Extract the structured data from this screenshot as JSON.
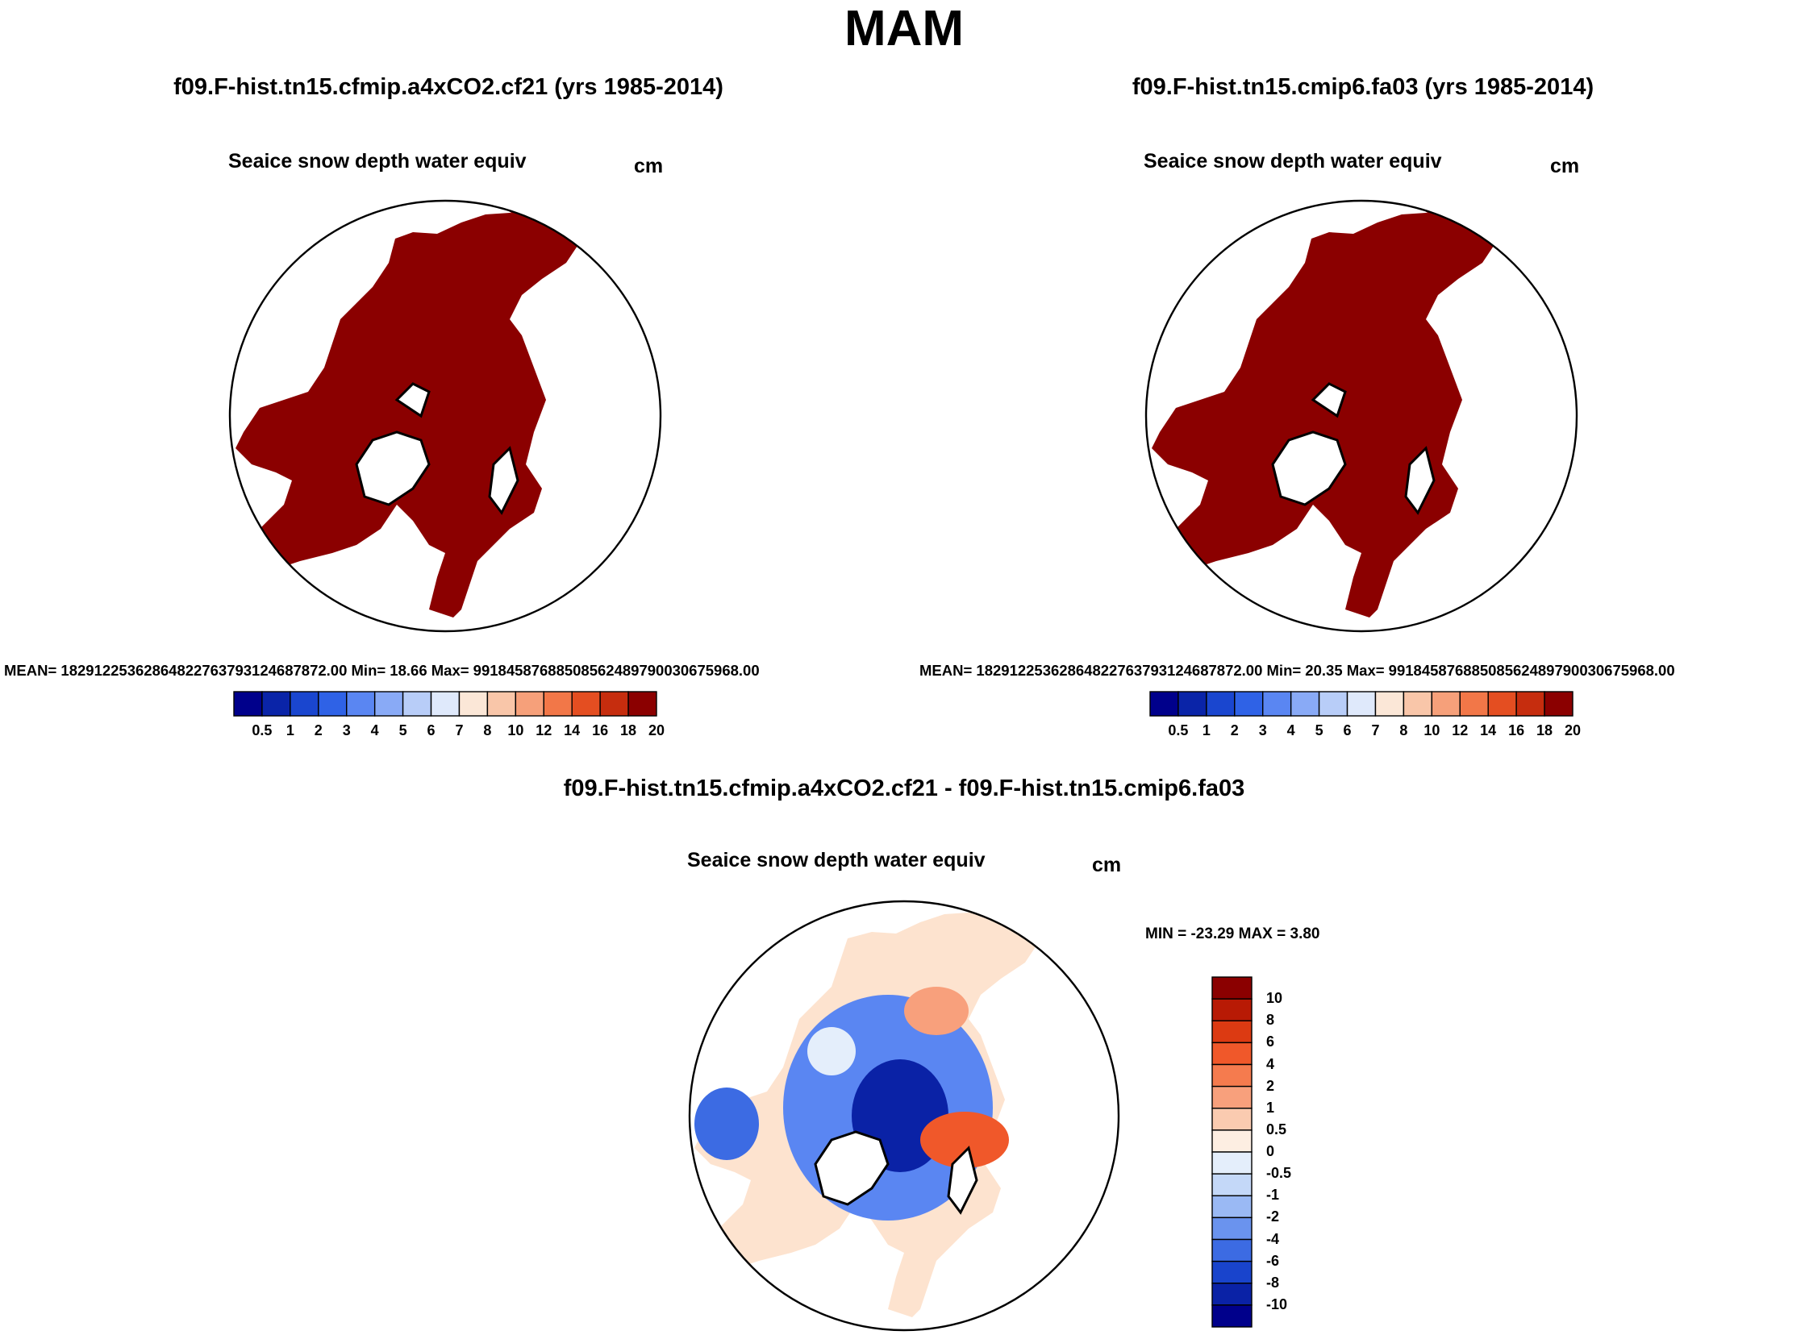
{
  "main_title": "MAM",
  "panels": [
    {
      "case_title": "f09.F-hist.tn15.cfmip.a4xCO2.cf21 (yrs 1985-2014)",
      "var_title": "Seaice snow depth water equiv",
      "units": "cm",
      "stats": "MEAN= 182912253628648227637931246878​72.00  Min=  18.66  Max= 99184587688508562489790030675968.00",
      "colorbar": {
        "labels": [
          "0.5",
          "1",
          "2",
          "3",
          "4",
          "5",
          "6",
          "7",
          "8",
          "10",
          "12",
          "14",
          "16",
          "18",
          "20"
        ],
        "colors": [
          "#00008b",
          "#0a24a8",
          "#1a46cf",
          "#2f62e6",
          "#5a86f2",
          "#89aaf6",
          "#b8cdf8",
          "#dfe9fb",
          "#fbe7d7",
          "#f9c6a9",
          "#f6a07a",
          "#f27748",
          "#e44e21",
          "#c62d0e",
          "#8b0000"
        ]
      },
      "field_color": "#8b0000"
    },
    {
      "case_title": "f09.F-hist.tn15.cmip6.fa03 (yrs 1985-2014)",
      "var_title": "Seaice snow depth water equiv",
      "units": "cm",
      "stats": "MEAN= 18291225362864822763793124687872.00  Min=  20.35  Max= 99184587688508562489790030675968.00",
      "colorbar": {
        "labels": [
          "0.5",
          "1",
          "2",
          "3",
          "4",
          "5",
          "6",
          "7",
          "8",
          "10",
          "12",
          "14",
          "16",
          "18",
          "20"
        ],
        "colors": [
          "#00008b",
          "#0a24a8",
          "#1a46cf",
          "#2f62e6",
          "#5a86f2",
          "#89aaf6",
          "#b8cdf8",
          "#dfe9fb",
          "#fbe7d7",
          "#f9c6a9",
          "#f6a07a",
          "#f27748",
          "#e44e21",
          "#c62d0e",
          "#8b0000"
        ]
      },
      "field_color": "#8b0000"
    }
  ],
  "diff_panel": {
    "case_title": "f09.F-hist.tn15.cfmip.a4xCO2.cf21 - f09.F-hist.tn15.cmip6.fa03",
    "var_title": "Seaice snow depth water equiv",
    "units": "cm",
    "minmax": "MIN = -23.29 MAX =   3.80",
    "colorbar": {
      "labels": [
        "10",
        "8",
        "6",
        "4",
        "2",
        "1",
        "0.5",
        "0",
        "-0.5",
        "-1",
        "-2",
        "-4",
        "-6",
        "-8",
        "-10"
      ],
      "colors": [
        "#8b0000",
        "#b81a05",
        "#dc3a12",
        "#f0582a",
        "#f57b4e",
        "#f8a07c",
        "#facbb0",
        "#fdeee2",
        "#e4eefb",
        "#c4d8f8",
        "#9ab9f4",
        "#6a93ee",
        "#3c6be3",
        "#1944cc",
        "#0a22a6",
        "#00008b"
      ]
    }
  }
}
